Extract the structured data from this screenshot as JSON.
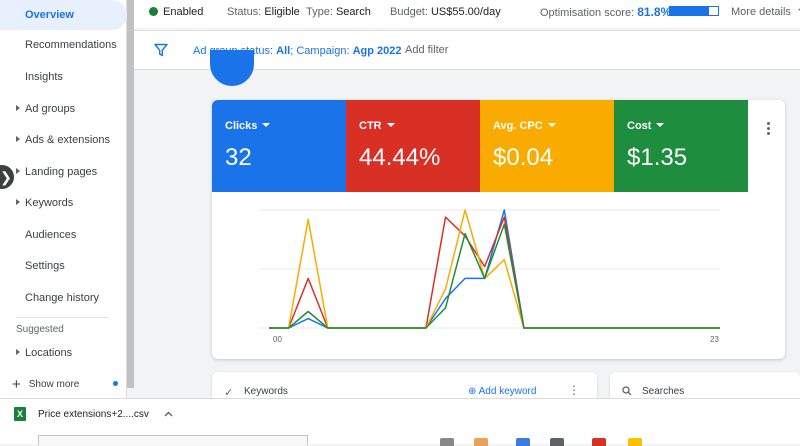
{
  "sidebar": {
    "items": [
      {
        "label": "Overview",
        "active": true,
        "arrow": false
      },
      {
        "label": "Recommendations",
        "arrow": false
      },
      {
        "label": "Insights",
        "arrow": false
      },
      {
        "label": "Ad groups",
        "arrow": true
      },
      {
        "label": "Ads & extensions",
        "arrow": true
      },
      {
        "label": "Landing pages",
        "arrow": true
      },
      {
        "label": "Keywords",
        "arrow": true
      },
      {
        "label": "Audiences",
        "arrow": false
      },
      {
        "label": "Settings",
        "arrow": false
      },
      {
        "label": "Change history",
        "arrow": false
      }
    ],
    "suggested_label": "Suggested",
    "suggested_items": [
      {
        "label": "Locations",
        "arrow": true
      }
    ],
    "show_more_label": "Show more",
    "expand_glyph": "❯"
  },
  "status_bar": {
    "status": "Enabled",
    "status_label": "Status:",
    "status_value": "Eligible",
    "type_label": "Type:",
    "type_value": "Search",
    "budget_label": "Budget:",
    "budget_value": "US$55.00/day",
    "optimisation_label": "Optimisation score:",
    "optimisation_value": "81.8%",
    "optimisation_fraction": 0.818,
    "more_details": "More details"
  },
  "filter_bar": {
    "ad_group_label": "Ad group status:",
    "ad_group_value": "All",
    "campaign_label": "; Campaign:",
    "campaign_value": "Agp 2022",
    "add_filter": "Add filter"
  },
  "metrics": [
    {
      "label": "Clicks",
      "value": "32",
      "color": "#1a73e8"
    },
    {
      "label": "CTR",
      "value": "44.44%",
      "color": "#d93025"
    },
    {
      "label": "Avg. CPC",
      "value": "$0.04",
      "color": "#f9ab00"
    },
    {
      "label": "Cost",
      "value": "$1.35",
      "color": "#1e8e3e"
    }
  ],
  "chart_data": {
    "type": "line",
    "x": [
      0,
      1,
      2,
      3,
      4,
      5,
      6,
      7,
      8,
      9,
      10,
      11,
      12,
      13,
      14,
      15,
      16,
      17,
      18,
      19,
      20,
      21,
      22,
      23
    ],
    "x_tick_labels": [
      "00",
      "23"
    ],
    "ylim": [
      0,
      1
    ],
    "grid": true,
    "series": [
      {
        "color": "#1a73e8",
        "values": [
          0,
          0,
          0.08,
          0,
          0,
          0,
          0,
          0,
          0,
          0.25,
          0.42,
          0.42,
          1.0,
          0,
          0,
          0,
          0,
          0,
          0,
          0,
          0,
          0,
          0,
          0
        ]
      },
      {
        "color": "#d93025",
        "values": [
          0,
          0,
          0.42,
          0,
          0,
          0,
          0,
          0,
          0,
          0.94,
          0.78,
          0.52,
          0.94,
          0,
          0,
          0,
          0,
          0,
          0,
          0,
          0,
          0,
          0,
          0
        ]
      },
      {
        "color": "#f9ab00",
        "values": [
          0,
          0,
          0.92,
          0,
          0,
          0,
          0,
          0,
          0,
          0.33,
          1.0,
          0.42,
          0.58,
          0,
          0,
          0,
          0,
          0,
          0,
          0,
          0,
          0,
          0,
          0
        ]
      },
      {
        "color": "#1e8e3e",
        "values": [
          0,
          0,
          0.14,
          0,
          0,
          0,
          0,
          0,
          0,
          0.17,
          0.8,
          0.42,
          0.88,
          0,
          0,
          0,
          0,
          0,
          0,
          0,
          0,
          0,
          0,
          0
        ]
      }
    ]
  },
  "bottom_cards": [
    {
      "label": "Keywords",
      "action": "Add keyword"
    },
    {
      "label": "Searches"
    }
  ],
  "download": {
    "filename": "Price extensions+2....csv",
    "icon_letter": "X"
  }
}
